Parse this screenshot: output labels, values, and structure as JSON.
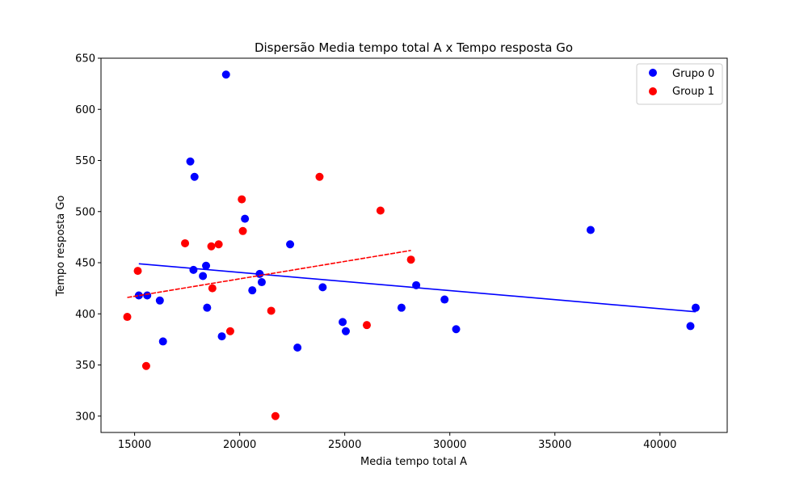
{
  "chart_data": {
    "type": "scatter",
    "title": "Dispersão Media tempo total A x Tempo resposta Go",
    "xlabel": "Media tempo total A",
    "ylabel": "Tempo resposta Go",
    "xlim": [
      13400,
      43200
    ],
    "ylim": [
      284,
      650
    ],
    "xticks": [
      15000,
      20000,
      25000,
      30000,
      35000,
      40000
    ],
    "yticks": [
      300,
      350,
      400,
      450,
      500,
      550,
      600,
      650
    ],
    "grid": false,
    "legend_position": "top-right",
    "series": [
      {
        "name": "Grupo 0",
        "color": "#0000ff",
        "points": [
          [
            15200,
            418
          ],
          [
            15600,
            418
          ],
          [
            16200,
            413
          ],
          [
            16350,
            373
          ],
          [
            17650,
            549
          ],
          [
            17800,
            443
          ],
          [
            17850,
            534
          ],
          [
            18250,
            437
          ],
          [
            18400,
            447
          ],
          [
            18450,
            406
          ],
          [
            19150,
            378
          ],
          [
            19350,
            634
          ],
          [
            20250,
            493
          ],
          [
            20600,
            423
          ],
          [
            20950,
            439
          ],
          [
            21050,
            431
          ],
          [
            22400,
            468
          ],
          [
            22750,
            367
          ],
          [
            23950,
            426
          ],
          [
            24900,
            392
          ],
          [
            25050,
            383
          ],
          [
            27700,
            406
          ],
          [
            28400,
            428
          ],
          [
            29750,
            414
          ],
          [
            30300,
            385
          ],
          [
            36700,
            482
          ],
          [
            41450,
            388
          ],
          [
            41700,
            406
          ]
        ],
        "trend": {
          "x": [
            15200,
            41700
          ],
          "y": [
            449,
            402
          ]
        }
      },
      {
        "name": "Group 1",
        "color": "#ff0000",
        "points": [
          [
            14650,
            397
          ],
          [
            15150,
            442
          ],
          [
            15550,
            349
          ],
          [
            17400,
            469
          ],
          [
            18650,
            466
          ],
          [
            18700,
            425
          ],
          [
            19000,
            468
          ],
          [
            19550,
            383
          ],
          [
            20100,
            512
          ],
          [
            20150,
            481
          ],
          [
            21500,
            403
          ],
          [
            21700,
            300
          ],
          [
            23800,
            534
          ],
          [
            26050,
            389
          ],
          [
            26700,
            501
          ],
          [
            28150,
            453
          ]
        ],
        "trend": {
          "x": [
            14650,
            28150
          ],
          "y": [
            416,
            462
          ]
        }
      }
    ]
  }
}
